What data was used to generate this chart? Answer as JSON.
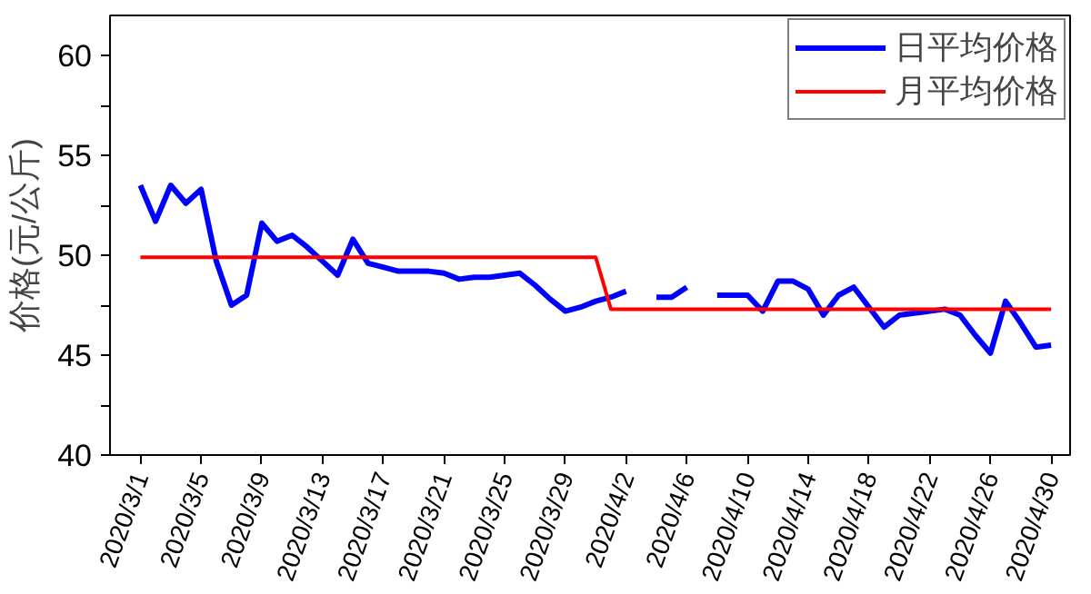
{
  "chart_data": {
    "type": "line",
    "ylabel": "价格(元/公斤)",
    "xlim": [
      "2020-02-28",
      "2020-05-01T06:00"
    ],
    "xticks": [
      {
        "value": "2020-03-01",
        "label": "2020/3/1"
      },
      {
        "value": "2020-03-05",
        "label": "2020/3/5"
      },
      {
        "value": "2020-03-09",
        "label": "2020/3/9"
      },
      {
        "value": "2020-03-13",
        "label": "2020/3/13"
      },
      {
        "value": "2020-03-17",
        "label": "2020/3/17"
      },
      {
        "value": "2020-03-21",
        "label": "2020/3/21"
      },
      {
        "value": "2020-03-25",
        "label": "2020/3/25"
      },
      {
        "value": "2020-03-29",
        "label": "2020/3/29"
      },
      {
        "value": "2020-04-02",
        "label": "2020/4/2"
      },
      {
        "value": "2020-04-06",
        "label": "2020/4/6"
      },
      {
        "value": "2020-04-10",
        "label": "2020/4/10"
      },
      {
        "value": "2020-04-14",
        "label": "2020/4/14"
      },
      {
        "value": "2020-04-18",
        "label": "2020/4/18"
      },
      {
        "value": "2020-04-22",
        "label": "2020/4/22"
      },
      {
        "value": "2020-04-26",
        "label": "2020/4/26"
      },
      {
        "value": "2020-04-30",
        "label": "2020/4/30"
      }
    ],
    "ylim": [
      40,
      62
    ],
    "yticks": [
      40,
      {
        "value": 42.5,
        "label": null
      },
      45,
      {
        "value": 47.5,
        "label": null
      },
      50,
      {
        "value": 52.5,
        "label": null
      },
      55,
      {
        "value": 57.5,
        "label": null
      },
      60
    ],
    "grid": false,
    "legend": "top right",
    "line_style": "solid",
    "marker": "none",
    "series": [
      {
        "name": "日平均价格",
        "color": "#0000ff",
        "x": [
          "2020-03-01",
          "2020-03-02",
          "2020-03-03",
          "2020-03-04",
          "2020-03-05",
          "2020-03-06",
          "2020-03-07",
          "2020-03-08",
          "2020-03-09",
          "2020-03-10",
          "2020-03-11",
          "2020-03-12",
          "2020-03-13",
          "2020-03-14",
          "2020-03-15",
          "2020-03-16",
          "2020-03-17",
          "2020-03-18",
          "2020-03-19",
          "2020-03-20",
          "2020-03-21",
          "2020-03-22",
          "2020-03-23",
          "2020-03-24",
          "2020-03-25",
          "2020-03-26",
          "2020-03-27",
          "2020-03-28",
          "2020-03-29",
          "2020-03-30",
          "2020-03-31",
          "2020-04-01",
          "2020-04-02",
          "2020-04-03",
          "2020-04-04",
          "2020-04-05",
          "2020-04-06",
          "2020-04-07",
          "2020-04-08",
          "2020-04-09",
          "2020-04-10",
          "2020-04-11",
          "2020-04-12",
          "2020-04-13",
          "2020-04-14",
          "2020-04-15",
          "2020-04-16",
          "2020-04-17",
          "2020-04-18",
          "2020-04-19",
          "2020-04-20",
          "2020-04-21",
          "2020-04-22",
          "2020-04-23",
          "2020-04-24",
          "2020-04-25",
          "2020-04-26",
          "2020-04-27",
          "2020-04-28",
          "2020-04-29",
          "2020-04-30"
        ],
        "values": [
          53.5,
          51.7,
          53.5,
          52.6,
          53.3,
          49.7,
          47.5,
          48.0,
          51.6,
          50.7,
          51.0,
          50.4,
          49.7,
          49.0,
          50.8,
          49.6,
          49.4,
          49.2,
          49.2,
          49.2,
          49.1,
          48.8,
          48.9,
          48.9,
          49.0,
          49.1,
          48.5,
          47.8,
          47.2,
          47.4,
          47.7,
          47.9,
          48.2,
          null,
          47.9,
          47.9,
          48.4,
          null,
          48.0,
          48.0,
          48.0,
          47.2,
          48.7,
          48.7,
          48.3,
          47.0,
          48.0,
          48.4,
          47.4,
          46.4,
          47.0,
          47.1,
          47.2,
          47.3,
          47.0,
          46.0,
          45.1,
          47.7,
          46.6,
          45.4,
          45.5
        ]
      },
      {
        "name": "月平均价格",
        "color": "#ff0000",
        "x": [
          "2020-03-01",
          "2020-03-31",
          "2020-04-01",
          "2020-04-30"
        ],
        "values": [
          49.9,
          49.9,
          47.3,
          47.3
        ]
      }
    ]
  }
}
